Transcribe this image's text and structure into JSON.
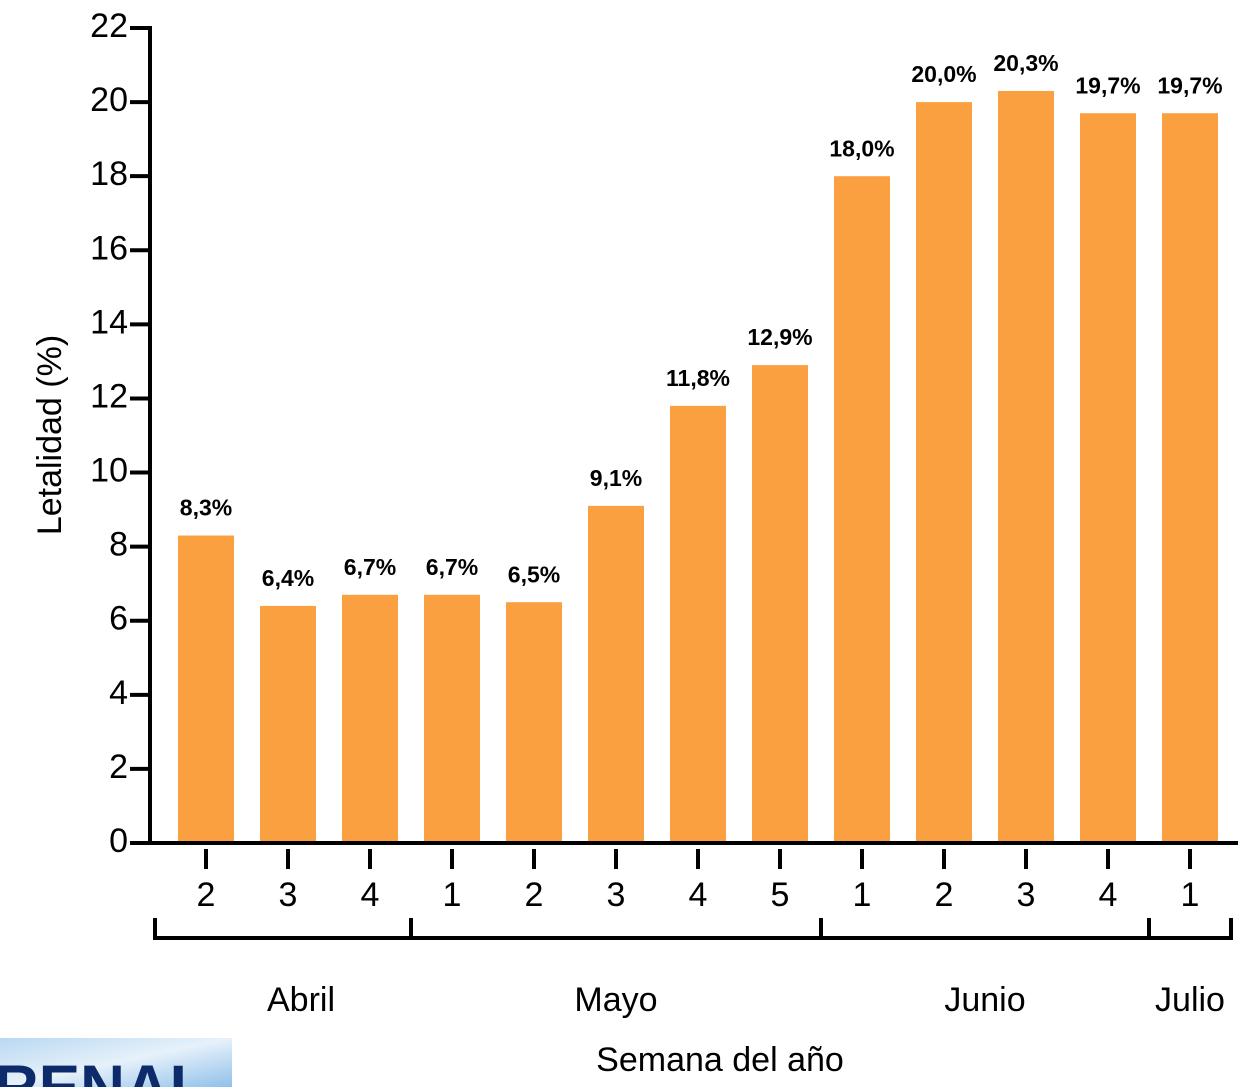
{
  "chart_data": {
    "type": "bar",
    "y_label": "Letalidad (%)",
    "x_label": "Semana del año",
    "categories": [
      "2",
      "3",
      "4",
      "1",
      "2",
      "3",
      "4",
      "5",
      "1",
      "2",
      "3",
      "4",
      "1"
    ],
    "groups": [
      {
        "label": "Abril",
        "count": 3
      },
      {
        "label": "Mayo",
        "count": 5
      },
      {
        "label": "Junio",
        "count": 4
      },
      {
        "label": "Julio",
        "count": 1
      }
    ],
    "values": [
      8.3,
      6.4,
      6.7,
      6.7,
      6.5,
      9.1,
      11.8,
      12.9,
      18.0,
      20.0,
      20.3,
      19.7,
      19.7
    ],
    "value_labels": [
      "8,3%",
      "6,4%",
      "6,7%",
      "6,7%",
      "6,5%",
      "9,1%",
      "11,8%",
      "12,9%",
      "18,0%",
      "20,0%",
      "20,3%",
      "19,7%",
      "19,7%"
    ],
    "color": "#fba041",
    "ylim": [
      0,
      22
    ],
    "yticks": [
      0,
      2,
      4,
      6,
      8,
      10,
      12,
      14,
      16,
      18,
      20,
      22
    ],
    "logo_text": "RENAL"
  }
}
